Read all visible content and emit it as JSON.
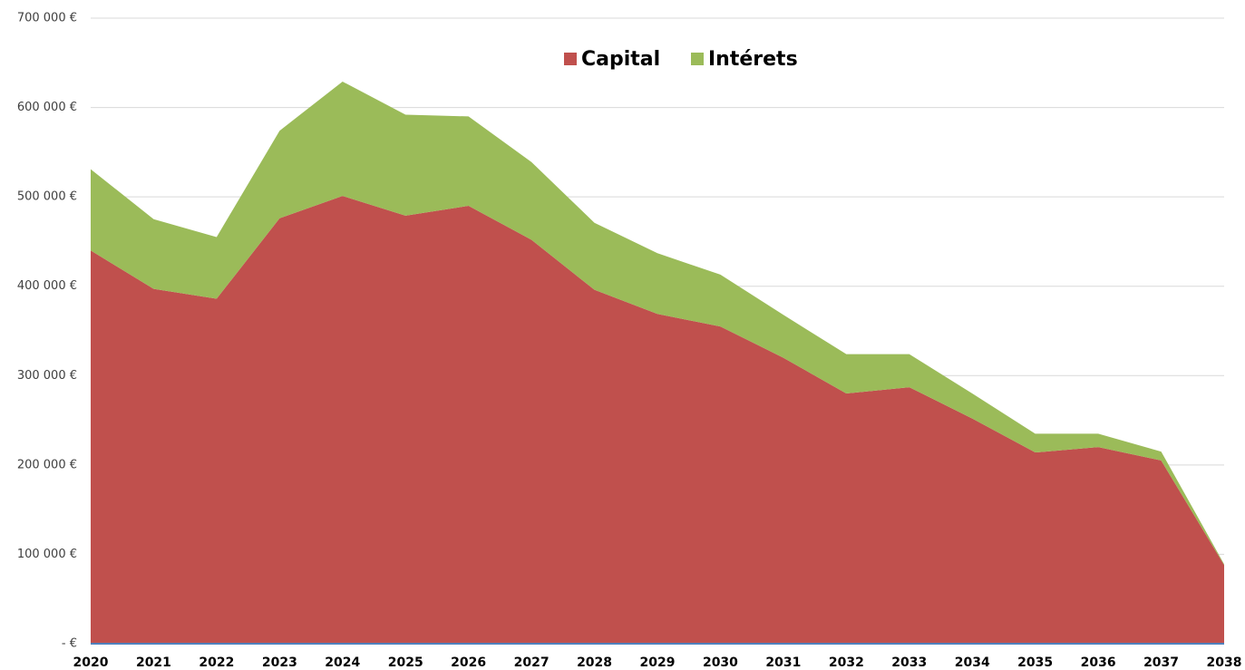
{
  "chart_data": {
    "type": "stacked_area",
    "categories": [
      "2020",
      "2021",
      "2022",
      "2023",
      "2024",
      "2025",
      "2026",
      "2027",
      "2028",
      "2029",
      "2030",
      "2031",
      "2032",
      "2033",
      "2034",
      "2035",
      "2036",
      "2037",
      "2038"
    ],
    "series": [
      {
        "name": "Capital",
        "color": "#c0504d",
        "values": [
          440000,
          397000,
          386000,
          476000,
          501000,
          479000,
          490000,
          452000,
          396000,
          369000,
          355000,
          320000,
          280000,
          287000,
          252000,
          214000,
          220000,
          205000,
          88000
        ]
      },
      {
        "name": "Intérets",
        "color": "#9bbb59",
        "values": [
          91000,
          78000,
          69000,
          98000,
          128000,
          113000,
          100000,
          87000,
          75000,
          68000,
          58000,
          48000,
          44000,
          37000,
          28000,
          21000,
          15000,
          10000,
          1000
        ]
      }
    ],
    "ylim": [
      0,
      700000
    ],
    "yticks": [
      {
        "value": 0,
        "label": "- €"
      },
      {
        "value": 100000,
        "label": "100 000 €"
      },
      {
        "value": 200000,
        "label": "200 000 €"
      },
      {
        "value": 300000,
        "label": "300 000 €"
      },
      {
        "value": 400000,
        "label": "400 000 €"
      },
      {
        "value": 500000,
        "label": "500 000 €"
      },
      {
        "value": 600000,
        "label": "600 000 €"
      },
      {
        "value": 700000,
        "label": "700 000 €"
      }
    ],
    "grid": true,
    "legend": "top"
  }
}
